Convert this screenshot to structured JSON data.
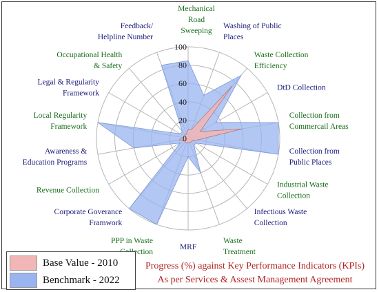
{
  "chart_data": {
    "type": "radar",
    "r_range": [
      0,
      100
    ],
    "r_ticks": [
      "0",
      "20",
      "40",
      "60",
      "80",
      "100"
    ],
    "categories": [
      {
        "label": "Mechanical Road Sweeping",
        "lines": [
          "Mechanical",
          "Road",
          "Sweeping"
        ],
        "color": "#1a6e1a"
      },
      {
        "label": "Washing of Public Places",
        "lines": [
          "Washing of Public",
          "Places"
        ],
        "color": "#1a1a7a"
      },
      {
        "label": "Waste Collection Efficiency",
        "lines": [
          "Waste Collection",
          "Efficiency"
        ],
        "color": "#1a6e1a"
      },
      {
        "label": "DtD Collection",
        "lines": [
          "DtD Collection"
        ],
        "color": "#1a1a7a"
      },
      {
        "label": "Collection from Commercail Areas",
        "lines": [
          "Collection from",
          "Commercail Areas"
        ],
        "color": "#1a6e1a"
      },
      {
        "label": "Collection from Public Places",
        "lines": [
          "Collection from",
          "Public Places"
        ],
        "color": "#1a1a7a"
      },
      {
        "label": "Industrial Waste Collection",
        "lines": [
          "Industrial Waste",
          "Collection"
        ],
        "color": "#1a6e1a"
      },
      {
        "label": "Infectious Waste Collection",
        "lines": [
          "Infectious Waste",
          "Collection"
        ],
        "color": "#1a1a7a"
      },
      {
        "label": "Waste Treatment",
        "lines": [
          "Waste",
          "Treatment"
        ],
        "color": "#1a6e1a"
      },
      {
        "label": "MRF",
        "lines": [
          "MRF"
        ],
        "color": "#1a1a7a"
      },
      {
        "label": "PPP in Waste Collection",
        "lines": [
          "PPP in Waste",
          "Collection"
        ],
        "color": "#1a6e1a"
      },
      {
        "label": "Corporate Goverance Framwork",
        "lines": [
          "Corporate Goverance",
          "Framwork"
        ],
        "color": "#1a1a7a"
      },
      {
        "label": "Revenue Collection",
        "lines": [
          "Revenue Collection"
        ],
        "color": "#1a6e1a"
      },
      {
        "label": "Awareness & Education Programs",
        "lines": [
          "Awareness &",
          "Education Programs"
        ],
        "color": "#1a1a7a"
      },
      {
        "label": "Local Regularity Framework",
        "lines": [
          "Local Regularity",
          "Framework"
        ],
        "color": "#1a6e1a"
      },
      {
        "label": "Legal & Regularity Framework",
        "lines": [
          "Legal & Regularity",
          "Framework"
        ],
        "color": "#1a1a7a"
      },
      {
        "label": "Occupational Health & Safety",
        "lines": [
          "Occupational Health",
          "& Safety"
        ],
        "color": "#1a6e1a"
      },
      {
        "label": "Feedback/ Helpline Number",
        "lines": [
          "Feedback/",
          "Helpline Number"
        ],
        "color": "#1a1a7a"
      }
    ],
    "series": [
      {
        "name": "Benchmark - 2022",
        "color": "#9ab4f2",
        "values": [
          85,
          50,
          90,
          35,
          100,
          100,
          10,
          10,
          40,
          20,
          100,
          100,
          10,
          60,
          100,
          10,
          10,
          85
        ]
      },
      {
        "name": "Base Value - 2010",
        "color": "#f2b6b6",
        "values": [
          10,
          10,
          75,
          15,
          60,
          10,
          5,
          5,
          5,
          5,
          5,
          5,
          5,
          10,
          5,
          5,
          5,
          5
        ]
      }
    ],
    "legend_position": "bottom-left",
    "grid": true
  },
  "legend": [
    {
      "label": "Base Value - 2010",
      "color": "#f2b6b6"
    },
    {
      "label": "Benchmark - 2022",
      "color": "#9ab4f2"
    }
  ],
  "caption": {
    "line1": "Progress (%) against Key Performance Indicators (KPIs)",
    "line2": "As per Services & Assest Management Agreement"
  }
}
